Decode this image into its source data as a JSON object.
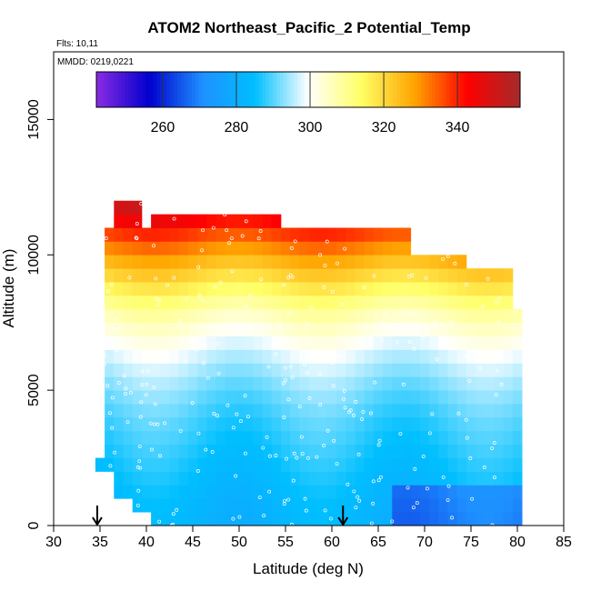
{
  "chart_data": {
    "type": "heatmap",
    "title": "ATOM2 Northeast_Pacific_2 Potential_Temp",
    "flights_label": "Flts: 10,11",
    "dates_label": "MMDD: 0219,0221",
    "xlabel": "Latitude (deg N)",
    "ylabel": "Altitude (m)",
    "xlim": [
      30,
      85
    ],
    "ylim": [
      0,
      17500
    ],
    "x_ticks": [
      "30",
      "35",
      "40",
      "45",
      "50",
      "55",
      "60",
      "65",
      "70",
      "75",
      "80",
      "85"
    ],
    "y_ticks": [
      "0",
      "5000",
      "10000",
      "15000"
    ],
    "colorbar": {
      "range": [
        242,
        357
      ],
      "ticks": [
        "260",
        "280",
        "300",
        "320",
        "340"
      ],
      "tick_values": [
        260,
        280,
        300,
        320,
        340
      ],
      "colors": [
        "#8a2be2",
        "#0000cd",
        "#1e90ff",
        "#00bfff",
        "#ffffff",
        "#ffff66",
        "#ffa500",
        "#ff0000",
        "#a52a2a"
      ]
    },
    "arrows_latitude": [
      34.7,
      61.2
    ],
    "coverage": {
      "lat_min": 34.5,
      "lat_max": 80.5,
      "top_altitude_by_latitude": [
        {
          "lat": 34.5,
          "alt": 2500
        },
        {
          "lat": 35.0,
          "alt": 6500
        },
        {
          "lat": 35.5,
          "alt": 10800
        },
        {
          "lat": 36.5,
          "alt": 12000
        },
        {
          "lat": 39.5,
          "alt": 11000
        },
        {
          "lat": 40.0,
          "alt": 11500
        },
        {
          "lat": 54.0,
          "alt": 10600
        },
        {
          "lat": 68.5,
          "alt": 10000
        },
        {
          "lat": 74.0,
          "alt": 9400
        },
        {
          "lat": 79.0,
          "alt": 8000
        },
        {
          "lat": 80.0,
          "alt": 5000
        },
        {
          "lat": 80.5,
          "alt": 4500
        }
      ],
      "bottom_altitude_by_latitude": [
        {
          "lat": 34.5,
          "alt": 2000
        },
        {
          "lat": 36.5,
          "alt": 1000
        },
        {
          "lat": 38.5,
          "alt": 500
        },
        {
          "lat": 40.0,
          "alt": 0
        }
      ]
    },
    "potential_temperature_profile": [
      {
        "altitude": 0,
        "value": 282
      },
      {
        "altitude": 1000,
        "value": 283
      },
      {
        "altitude": 2000,
        "value": 285
      },
      {
        "altitude": 3000,
        "value": 287
      },
      {
        "altitude": 4000,
        "value": 289
      },
      {
        "altitude": 5000,
        "value": 292
      },
      {
        "altitude": 6000,
        "value": 296
      },
      {
        "altitude": 7000,
        "value": 301
      },
      {
        "altitude": 8000,
        "value": 308
      },
      {
        "altitude": 9000,
        "value": 318
      },
      {
        "altitude": 10000,
        "value": 328
      },
      {
        "altitude": 11000,
        "value": 340
      },
      {
        "altitude": 12000,
        "value": 352
      }
    ]
  }
}
